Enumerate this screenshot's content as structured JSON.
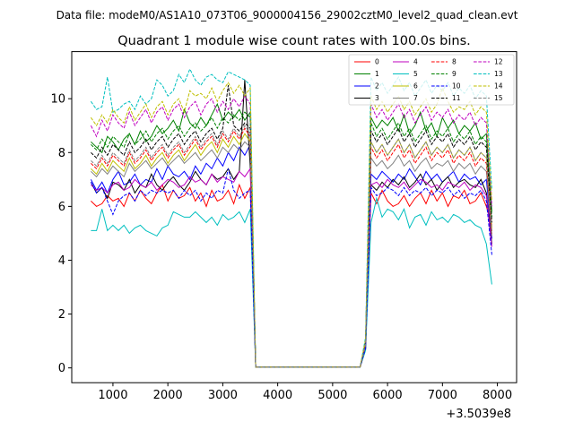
{
  "figure": {
    "suptitle": "Data file: modeM0/AS1A10_073T06_9000004156_29002cztM0_level2_quad_clean.evt"
  },
  "chart_data": {
    "type": "line",
    "title": "Quadrant 1 module wise count rates with 100.0s bins.",
    "xlabel": "",
    "ylabel": "",
    "x_offset_label": "+3.5039e8",
    "xlim": [
      250,
      8350
    ],
    "ylim": [
      -0.55,
      11.75
    ],
    "xticks": [
      1000,
      2000,
      3000,
      4000,
      5000,
      6000,
      7000,
      8000
    ],
    "xtick_labels": [
      "1000",
      "2000",
      "3000",
      "4000",
      "5000",
      "6000",
      "7000",
      "8000"
    ],
    "yticks": [
      0,
      2,
      4,
      6,
      8,
      10
    ],
    "ytick_labels": [
      "0",
      "2",
      "4",
      "6",
      "8",
      "10"
    ],
    "grid": false,
    "legend_position": "top-right",
    "x": [
      600,
      700,
      800,
      900,
      1000,
      1100,
      1200,
      1300,
      1400,
      1500,
      1600,
      1700,
      1800,
      1900,
      2000,
      2100,
      2200,
      2300,
      2400,
      2500,
      2600,
      2700,
      2800,
      2900,
      3000,
      3100,
      3200,
      3300,
      3400,
      3500,
      3600,
      3700,
      3800,
      3900,
      4000,
      4100,
      4200,
      4300,
      4400,
      4500,
      4600,
      4700,
      4800,
      4900,
      5000,
      5100,
      5200,
      5300,
      5400,
      5500,
      5600,
      5700,
      5800,
      5900,
      6000,
      6100,
      6200,
      6300,
      6400,
      6500,
      6600,
      6700,
      6800,
      6900,
      7000,
      7100,
      7200,
      7300,
      7400,
      7500,
      7600,
      7700,
      7800,
      7900,
      8000
    ],
    "series": [
      {
        "name": "0",
        "color": "#ff0000",
        "dashed": false,
        "on": [
          6.2,
          6.0,
          6.1,
          6.4,
          6.2,
          6.3,
          6.0,
          6.5,
          6.2,
          6.6,
          6.3,
          6.1,
          6.5,
          6.8,
          6.2,
          6.6,
          6.3,
          6.4,
          6.7,
          6.2,
          6.5,
          6.0,
          6.6,
          6.2,
          6.3,
          6.6,
          6.1,
          6.8,
          6.3,
          6.7
        ],
        "off": [
          6.8,
          6.5,
          6.1,
          6.6,
          6.2,
          6.0,
          6.1,
          6.4,
          6.0,
          6.3,
          6.5,
          6.1,
          6.6,
          6.2,
          6.5,
          6.0,
          6.4,
          6.3,
          6.6,
          6.1,
          6.2,
          6.5,
          6.0,
          5.3
        ]
      },
      {
        "name": "1",
        "color": "#008000",
        "dashed": false,
        "on": [
          8.4,
          8.2,
          8.0,
          8.6,
          8.4,
          8.1,
          8.5,
          8.7,
          8.3,
          8.8,
          8.4,
          8.6,
          9.0,
          8.7,
          8.9,
          9.2,
          8.8,
          9.6,
          9.1,
          8.9,
          9.3,
          9.0,
          9.4,
          9.8,
          9.2,
          9.5,
          9.3,
          9.6,
          9.2,
          9.5
        ],
        "off": [
          9.6,
          9.3,
          8.9,
          9.2,
          9.0,
          9.3,
          8.8,
          9.4,
          8.7,
          9.0,
          9.5,
          8.8,
          9.1,
          8.6,
          9.3,
          8.9,
          9.2,
          8.7,
          9.0,
          8.8,
          9.1,
          8.5,
          8.7,
          5.8
        ]
      },
      {
        "name": "2",
        "color": "#0000ff",
        "dashed": false,
        "on": [
          7.0,
          6.6,
          6.9,
          6.5,
          7.0,
          7.3,
          6.8,
          6.9,
          7.2,
          6.8,
          7.0,
          6.9,
          7.4,
          7.0,
          7.5,
          7.2,
          7.1,
          7.3,
          7.0,
          7.5,
          7.2,
          7.6,
          7.4,
          7.8,
          7.5,
          8.0,
          7.7,
          8.2,
          7.9,
          8.3
        ],
        "off": [
          7.5,
          7.2,
          7.0,
          7.3,
          7.1,
          6.9,
          7.2,
          7.0,
          7.4,
          7.1,
          6.8,
          7.3,
          7.0,
          7.2,
          6.9,
          7.1,
          7.3,
          6.9,
          7.2,
          7.0,
          7.1,
          6.8,
          7.0,
          4.8
        ]
      },
      {
        "name": "3",
        "color": "#000000",
        "dashed": false,
        "on": [
          6.9,
          6.5,
          6.7,
          6.3,
          6.9,
          6.8,
          6.6,
          7.0,
          6.5,
          6.8,
          6.7,
          7.2,
          6.8,
          6.6,
          6.9,
          7.1,
          6.8,
          6.6,
          6.9,
          7.3,
          7.0,
          6.8,
          7.2,
          7.0,
          7.1,
          7.4,
          7.0,
          7.3,
          10.7,
          7.5
        ],
        "off": [
          7.1,
          6.8,
          6.6,
          6.9,
          6.7,
          7.0,
          6.8,
          7.1,
          6.7,
          6.9,
          7.2,
          6.8,
          7.0,
          6.6,
          6.9,
          7.1,
          6.7,
          6.9,
          7.0,
          6.8,
          6.7,
          7.0,
          6.5,
          4.6
        ]
      },
      {
        "name": "4",
        "color": "#bf00bf",
        "dashed": false,
        "on": [
          6.8,
          6.6,
          6.7,
          6.5,
          6.8,
          6.9,
          6.6,
          6.7,
          7.0,
          6.8,
          6.7,
          6.9,
          6.6,
          6.8,
          7.0,
          6.9,
          6.7,
          6.8,
          7.1,
          6.9,
          7.0,
          6.8,
          7.2,
          6.9,
          7.1,
          7.0,
          6.9,
          7.3,
          7.1,
          7.4
        ],
        "off": [
          7.0,
          6.8,
          6.9,
          6.7,
          7.0,
          6.8,
          6.7,
          6.9,
          6.6,
          6.8,
          7.0,
          6.9,
          6.7,
          6.8,
          6.6,
          6.9,
          6.8,
          6.7,
          6.9,
          6.6,
          6.8,
          6.7,
          6.4,
          4.5
        ]
      },
      {
        "name": "5",
        "color": "#00bfbf",
        "dashed": false,
        "on": [
          5.1,
          5.1,
          5.9,
          5.1,
          5.3,
          5.1,
          5.3,
          5.0,
          5.2,
          5.3,
          5.1,
          5.0,
          4.9,
          5.2,
          5.3,
          5.8,
          5.7,
          5.6,
          5.6,
          5.8,
          5.6,
          5.4,
          5.6,
          5.3,
          5.7,
          5.5,
          5.6,
          5.8,
          5.4,
          5.9
        ],
        "off": [
          6.5,
          5.4,
          6.3,
          5.6,
          5.9,
          5.8,
          5.5,
          5.9,
          5.2,
          5.6,
          5.7,
          5.3,
          5.8,
          5.5,
          5.6,
          5.4,
          5.7,
          5.6,
          5.4,
          5.5,
          5.3,
          5.2,
          4.6,
          3.1
        ]
      },
      {
        "name": "6",
        "color": "#bfbf00",
        "dashed": false,
        "on": [
          7.4,
          7.2,
          7.6,
          7.3,
          7.7,
          7.5,
          7.3,
          7.8,
          7.4,
          7.6,
          7.9,
          7.5,
          7.8,
          8.0,
          7.6,
          7.9,
          8.1,
          7.7,
          8.0,
          8.3,
          7.9,
          8.2,
          8.4,
          8.0,
          8.5,
          8.2,
          8.6,
          8.3,
          8.7,
          8.4
        ],
        "off": [
          8.9,
          8.4,
          8.0,
          8.3,
          7.9,
          8.2,
          8.5,
          8.0,
          8.3,
          7.8,
          8.1,
          8.4,
          7.9,
          8.2,
          8.0,
          8.3,
          7.8,
          8.1,
          7.9,
          8.2,
          7.7,
          8.0,
          7.8,
          5.2
        ]
      },
      {
        "name": "7",
        "color": "#808080",
        "dashed": false,
        "on": [
          7.3,
          7.1,
          7.4,
          7.2,
          7.5,
          7.3,
          7.1,
          7.6,
          7.3,
          7.5,
          7.7,
          7.4,
          7.6,
          7.8,
          7.5,
          7.7,
          7.9,
          7.6,
          7.8,
          8.0,
          7.7,
          7.9,
          8.1,
          7.8,
          8.2,
          8.0,
          8.3,
          8.1,
          8.4,
          8.2
        ],
        "off": [
          8.1,
          7.8,
          7.5,
          7.7,
          7.4,
          7.6,
          7.9,
          7.5,
          7.7,
          7.3,
          7.6,
          7.8,
          7.4,
          7.6,
          7.5,
          7.7,
          7.3,
          7.6,
          7.4,
          7.6,
          7.2,
          7.5,
          7.3,
          4.9
        ]
      },
      {
        "name": "8",
        "color": "#ff0000",
        "dashed": true,
        "on": [
          7.6,
          7.4,
          7.8,
          7.5,
          7.9,
          7.7,
          7.5,
          8.0,
          7.6,
          7.8,
          8.1,
          7.7,
          8.0,
          8.2,
          7.8,
          8.1,
          8.3,
          7.9,
          8.2,
          8.5,
          8.1,
          8.4,
          8.6,
          8.2,
          8.7,
          8.4,
          8.8,
          8.5,
          8.9,
          8.6
        ],
        "off": [
          8.6,
          8.2,
          7.8,
          8.1,
          7.7,
          8.0,
          8.3,
          7.8,
          8.1,
          7.6,
          7.9,
          8.2,
          7.7,
          8.0,
          7.8,
          8.1,
          7.6,
          7.9,
          7.7,
          8.0,
          7.5,
          7.8,
          7.6,
          5.0
        ]
      },
      {
        "name": "9",
        "color": "#008000",
        "dashed": true,
        "on": [
          8.3,
          8.1,
          8.5,
          8.2,
          8.6,
          8.4,
          8.2,
          8.7,
          8.3,
          8.5,
          8.8,
          8.4,
          8.7,
          8.9,
          8.5,
          8.8,
          9.0,
          8.6,
          8.9,
          9.1,
          8.8,
          9.0,
          9.3,
          8.9,
          9.3,
          9.1,
          9.4,
          9.2,
          9.5,
          9.3
        ],
        "off": [
          9.8,
          9.1,
          8.6,
          8.9,
          8.5,
          8.8,
          9.1,
          8.6,
          8.9,
          8.4,
          8.7,
          9.0,
          8.5,
          8.8,
          8.6,
          8.9,
          8.4,
          8.7,
          8.5,
          8.8,
          8.3,
          8.6,
          8.4,
          5.6
        ]
      },
      {
        "name": "10",
        "color": "#0000ff",
        "dashed": true,
        "on": [
          6.9,
          6.5,
          6.7,
          6.2,
          5.7,
          6.2,
          6.4,
          6.5,
          6.2,
          6.6,
          6.4,
          6.6,
          6.5,
          6.6,
          6.5,
          6.6,
          6.3,
          6.6,
          6.4,
          6.6,
          6.2,
          6.5,
          6.3,
          6.6,
          6.5,
          7.4,
          6.6,
          6.3,
          6.5,
          6.6
        ],
        "off": [
          7.3,
          6.7,
          6.4,
          6.5,
          6.7,
          6.6,
          6.4,
          6.7,
          6.4,
          6.6,
          6.5,
          6.7,
          6.4,
          6.6,
          6.5,
          6.7,
          6.4,
          6.6,
          6.3,
          6.5,
          6.4,
          6.6,
          6.2,
          4.2
        ]
      },
      {
        "name": "11",
        "color": "#000000",
        "dashed": true,
        "on": [
          8.0,
          7.8,
          8.2,
          7.9,
          8.3,
          8.1,
          7.9,
          8.4,
          8.0,
          8.2,
          8.5,
          8.1,
          8.4,
          8.6,
          8.2,
          8.5,
          8.7,
          8.3,
          8.6,
          8.8,
          8.4,
          8.7,
          8.9,
          8.5,
          8.9,
          10.5,
          9.0,
          8.8,
          9.1,
          8.9
        ],
        "off": [
          9.4,
          8.8,
          8.4,
          8.7,
          8.3,
          8.6,
          8.9,
          8.4,
          8.7,
          8.2,
          8.5,
          8.8,
          8.3,
          8.6,
          8.4,
          8.7,
          8.2,
          8.5,
          8.3,
          8.6,
          8.1,
          8.4,
          8.2,
          5.4
        ]
      },
      {
        "name": "12",
        "color": "#bf00bf",
        "dashed": true,
        "on": [
          9.0,
          8.6,
          9.2,
          8.8,
          9.4,
          9.1,
          8.9,
          9.5,
          9.0,
          9.3,
          9.6,
          9.1,
          9.5,
          9.7,
          9.2,
          9.6,
          9.8,
          9.3,
          9.7,
          9.9,
          9.4,
          9.8,
          10.0,
          9.5,
          9.9,
          9.6,
          10.0,
          9.7,
          10.1,
          9.8
        ],
        "off": [
          10.3,
          9.8,
          9.3,
          9.6,
          9.2,
          9.5,
          9.8,
          9.3,
          9.6,
          9.1,
          9.4,
          9.7,
          9.2,
          9.5,
          9.3,
          9.6,
          9.1,
          9.4,
          9.2,
          9.5,
          9.0,
          9.3,
          9.1,
          6.0
        ]
      },
      {
        "name": "13",
        "color": "#00bfbf",
        "dashed": true,
        "on": [
          9.9,
          9.6,
          9.7,
          10.8,
          9.5,
          9.6,
          9.8,
          9.9,
          9.6,
          10.1,
          9.8,
          10.0,
          10.7,
          10.5,
          10.1,
          10.3,
          10.9,
          10.6,
          11.1,
          10.7,
          10.5,
          10.8,
          10.9,
          10.7,
          10.6,
          11.0,
          10.9,
          10.8,
          10.7,
          10.5
        ],
        "off": [
          11.3,
          10.8,
          10.3,
          10.6,
          10.2,
          10.5,
          10.8,
          10.3,
          10.6,
          10.1,
          10.4,
          10.7,
          10.2,
          10.5,
          10.3,
          10.6,
          10.1,
          10.4,
          10.2,
          10.5,
          10.0,
          10.3,
          10.1,
          6.6
        ]
      },
      {
        "name": "14",
        "color": "#bfbf00",
        "dashed": true,
        "on": [
          9.3,
          9.0,
          9.4,
          9.1,
          9.6,
          9.3,
          9.1,
          9.7,
          9.2,
          9.5,
          9.8,
          9.3,
          9.7,
          9.9,
          9.4,
          9.8,
          10.0,
          9.5,
          10.3,
          10.1,
          10.2,
          10.0,
          10.4,
          9.9,
          10.3,
          10.6,
          10.2,
          10.5,
          10.1,
          10.4
        ],
        "off": [
          10.5,
          10.1,
          9.6,
          9.9,
          9.5,
          9.8,
          10.1,
          9.6,
          9.9,
          9.4,
          9.7,
          10.0,
          9.5,
          9.8,
          10.4,
          9.9,
          9.5,
          9.7,
          9.6,
          9.9,
          9.4,
          9.7,
          9.5,
          6.2
        ]
      },
      {
        "name": "15",
        "color": "#808080",
        "dashed": true,
        "on": [
          7.7,
          7.5,
          7.9,
          7.6,
          8.0,
          7.8,
          7.6,
          8.1,
          7.7,
          7.9,
          8.2,
          7.8,
          8.1,
          8.3,
          7.9,
          8.2,
          8.4,
          8.0,
          8.3,
          8.6,
          8.2,
          8.5,
          8.7,
          8.3,
          8.8,
          8.5,
          8.9,
          8.6,
          9.0,
          8.7
        ],
        "off": [
          8.8,
          8.4,
          8.0,
          8.3,
          7.9,
          8.2,
          8.5,
          8.0,
          8.3,
          7.8,
          8.1,
          8.4,
          7.9,
          8.2,
          8.0,
          8.3,
          7.8,
          8.1,
          7.9,
          8.2,
          7.7,
          8.0,
          7.8,
          5.1
        ]
      }
    ]
  }
}
